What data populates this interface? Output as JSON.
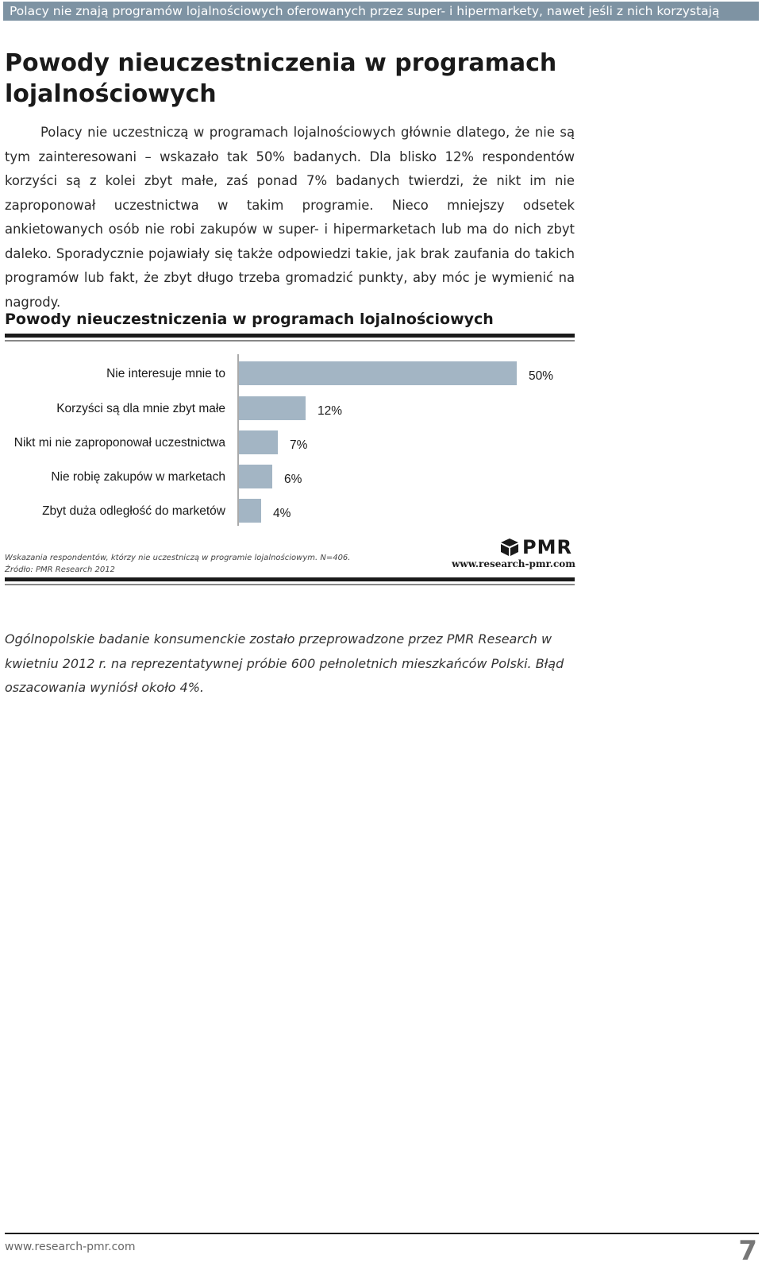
{
  "header": {
    "banner": "Polacy nie znają programów lojalnościowych oferowanych przez super- i hipermarkety, nawet jeśli z nich korzystają"
  },
  "page": {
    "title": "Powody nieuczestniczenia w programach lojalnościowych",
    "body": "Polacy nie uczestniczą w programach lojalnościowych głównie dlatego, że nie są tym zainteresowani – wskazało tak 50% badanych. Dla blisko 12% respondentów korzyści są z kolei zbyt małe, zaś ponad 7% badanych twierdzi, że nikt im nie zaproponował uczestnictwa w takim programie. Nieco mniejszy odsetek ankietowanych osób nie robi zakupów w super- i hipermarketach lub ma do nich zbyt daleko. Sporadycznie pojawiały się także odpowiedzi takie, jak brak zaufania do takich programów lub fakt, że zbyt długo trzeba gromadzić punkty, aby móc je wymienić na nagrody."
  },
  "chart_data": {
    "type": "bar",
    "orientation": "horizontal",
    "title": "Powody nieuczestniczenia w programach lojalnościowych",
    "categories": [
      "Nie interesuje mnie to",
      "Korzyści są dla mnie zbyt małe",
      "Nikt mi nie zaproponował uczestnictwa",
      "Nie robię zakupów w marketach",
      "Zbyt duża odległość do marketów"
    ],
    "values": [
      50,
      12,
      7,
      6,
      4
    ],
    "value_labels": [
      "50%",
      "12%",
      "7%",
      "6%",
      "4%"
    ],
    "unit": "%",
    "bar_color": "#a3b5c4",
    "grid": false,
    "legend": "none",
    "note": "Wskazania respondentów, którzy nie uczestniczą w programie lojalnościowym. N=406.",
    "source": "Źródło: PMR Research 2012"
  },
  "logo": {
    "brand": "PMR",
    "url": "www.research-pmr.com"
  },
  "footnote": "Ogólnopolskie badanie konsumenckie zostało przeprowadzone przez PMR Research w kwietniu 2012 r. na reprezentatywnej próbie 600 pełnoletnich mieszkańców Polski. Błąd oszacowania wyniósł około 4%.",
  "footer": {
    "url": "www.research-pmr.com",
    "page_number": "7"
  }
}
